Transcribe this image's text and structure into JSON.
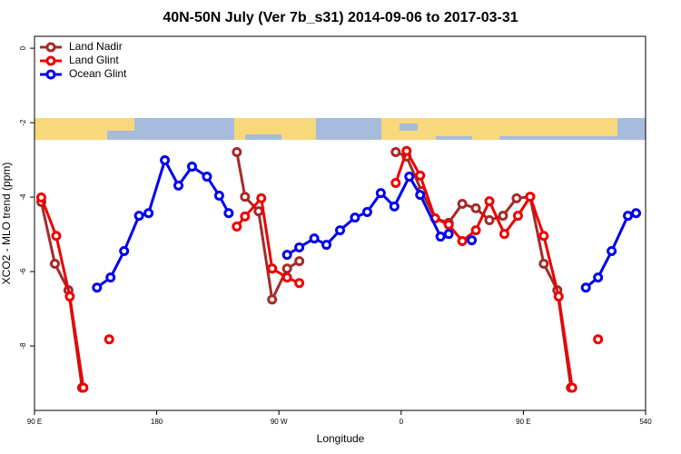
{
  "chart_data": {
    "type": "line",
    "title": "40N-50N July (Ver 7b_s31)   2014-09-06 to 2017-03-31",
    "x_label": "Longitude",
    "y_label": "XCO2 - MLO trend (ppm)",
    "xlim": [
      90,
      540
    ],
    "xticks": [
      {
        "value": 90,
        "label": "90 E"
      },
      180,
      {
        "value": 270,
        "label": "90 W"
      },
      {
        "value": 360,
        "label": "0"
      },
      {
        "value": 450,
        "label": "90 E"
      },
      540
    ],
    "ylim": [
      -9.73,
      0.32
    ],
    "yticks": [
      0,
      -2,
      -4,
      -6,
      -8
    ],
    "legend": "top-left",
    "series": [
      {
        "name": "Land Nadir",
        "color": "#a52a2a",
        "x": [
          95,
          105,
          115,
          125,
          null,
          239,
          245,
          255,
          265,
          276,
          285,
          null,
          356,
          364,
          375,
          385,
          395,
          405,
          415,
          425,
          435,
          445,
          455,
          465,
          475,
          485
        ],
        "values": [
          -4.13,
          -5.79,
          -6.5,
          -9.12,
          null,
          -2.79,
          -3.99,
          -4.38,
          -6.75,
          -5.92,
          -5.72,
          null,
          -2.79,
          -2.91,
          -3.84,
          -4.57,
          -4.69,
          -4.18,
          -4.3,
          -4.62,
          -4.5,
          -4.03,
          -3.99,
          -5.79,
          -6.5,
          -9.12
        ]
      },
      {
        "name": "Land Glint",
        "color": "#ee0000",
        "x": [
          95,
          106,
          116,
          126,
          null,
          145,
          null,
          239,
          245,
          257,
          265,
          276,
          285,
          null,
          356,
          364,
          374,
          385,
          395,
          405,
          415,
          425,
          436,
          446,
          455,
          465,
          476,
          486,
          null,
          505
        ],
        "values": [
          -4.01,
          -5.04,
          -6.67,
          -9.12,
          null,
          -7.82,
          null,
          -4.79,
          -4.52,
          -4.03,
          -5.92,
          -6.16,
          -6.31,
          null,
          -3.62,
          -2.76,
          -3.42,
          -4.57,
          -4.74,
          -5.18,
          -4.89,
          -4.11,
          -4.99,
          -4.5,
          -3.99,
          -5.04,
          -6.67,
          -9.12,
          null,
          -7.82
        ]
      },
      {
        "name": "Ocean Glint",
        "color": "#0000ee",
        "x": [
          136,
          146,
          156,
          167,
          174,
          186,
          196,
          206,
          217,
          226,
          233,
          null,
          276,
          285,
          296,
          305,
          315,
          326,
          335,
          345,
          355,
          366,
          374,
          389,
          395,
          null,
          412,
          null,
          496,
          505,
          515,
          527,
          533
        ],
        "values": [
          -6.43,
          -6.16,
          -5.45,
          -4.5,
          -4.43,
          -3.01,
          -3.69,
          -3.18,
          -3.45,
          -3.96,
          -4.43,
          null,
          -5.55,
          -5.35,
          -5.11,
          -5.28,
          -4.89,
          -4.55,
          -4.4,
          -3.89,
          -4.25,
          -3.45,
          -3.94,
          -5.06,
          -4.99,
          null,
          -5.16,
          null,
          -6.43,
          -6.16,
          -5.45,
          -4.5,
          -4.43
        ]
      }
    ]
  }
}
